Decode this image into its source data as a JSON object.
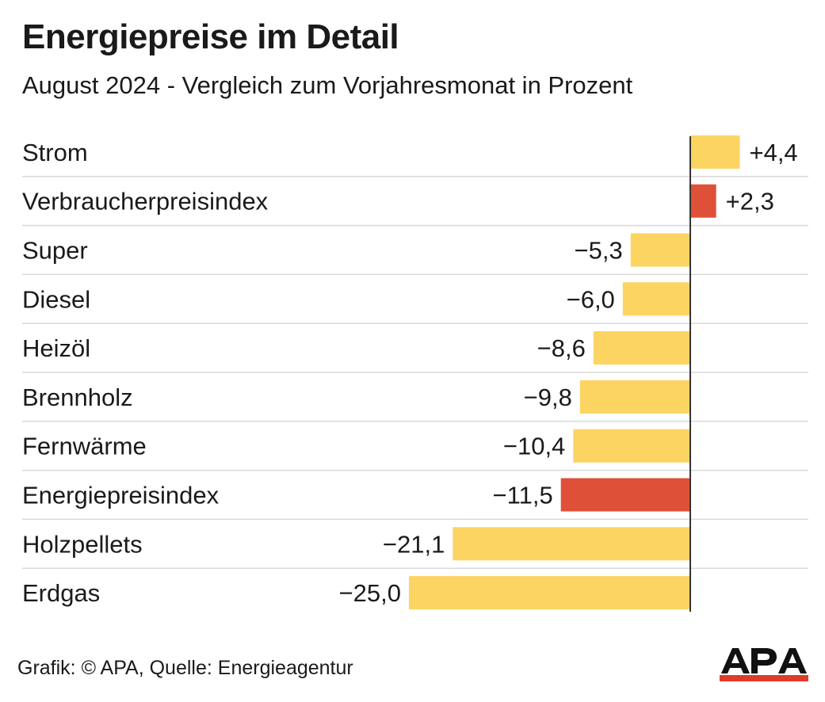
{
  "header": {
    "title": "Energiepreise im Detail",
    "subtitle": "August 2024 - Vergleich zum Vorjahresmonat in Prozent"
  },
  "chart_data": {
    "type": "bar",
    "orientation": "horizontal",
    "categories": [
      "Strom",
      "Verbraucherpreisindex",
      "Super",
      "Diesel",
      "Heizöl",
      "Brennholz",
      "Fernwärme",
      "Energiepreisindex",
      "Holzpellets",
      "Erdgas"
    ],
    "values": [
      4.4,
      2.3,
      -5.3,
      -6.0,
      -8.6,
      -9.8,
      -10.4,
      -11.5,
      -21.1,
      -25.0
    ],
    "labels": [
      "+4,4",
      "+2,3",
      "−5,3",
      "−6,0",
      "−8,6",
      "−9,8",
      "−10,4",
      "−11,5",
      "−21,1",
      "−25,0"
    ],
    "highlighted": [
      false,
      true,
      false,
      false,
      false,
      false,
      false,
      true,
      false,
      false
    ],
    "colors": {
      "default": "#fcd462",
      "highlight": "#de5138",
      "axis": "#333333",
      "grid": "#d9d9d9"
    },
    "grid": true
  },
  "footer": {
    "source": "Grafik: © APA, Quelle: Energieagentur",
    "logo_text": "APA"
  }
}
